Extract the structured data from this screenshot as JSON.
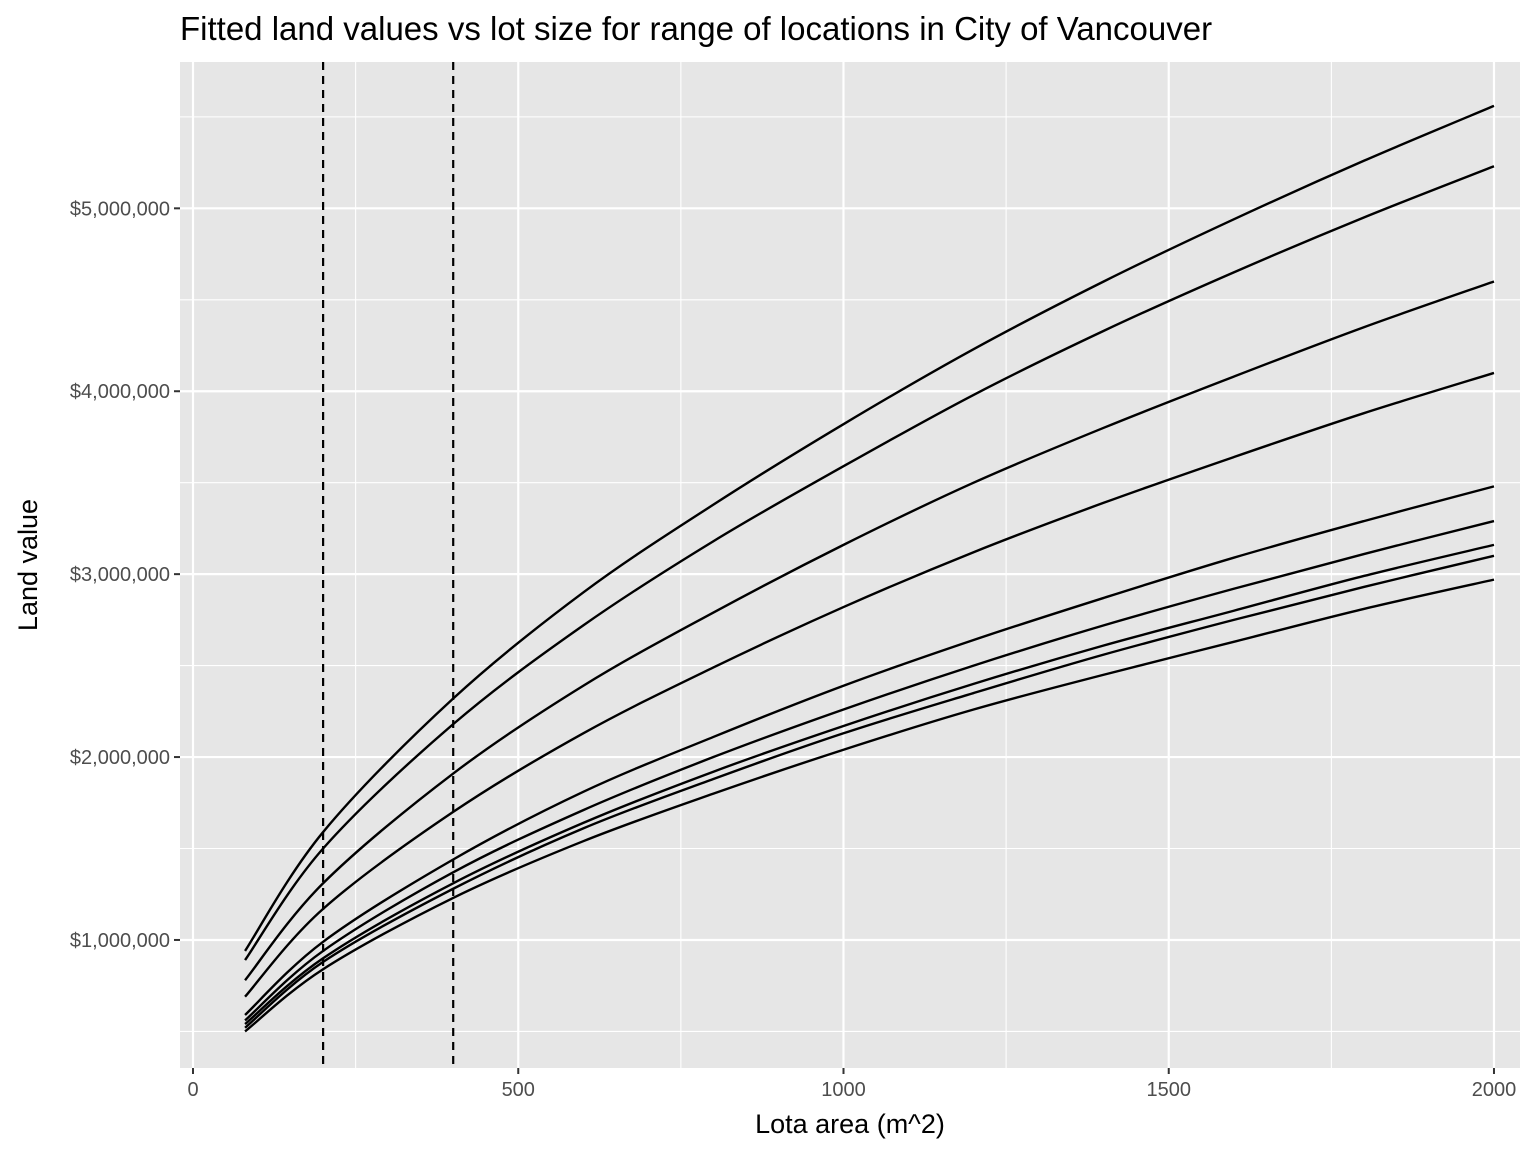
{
  "chart_data": {
    "type": "line",
    "title": "Fitted land values vs lot size for range of locations in City of Vancouver",
    "xlabel": "Lota area (m^2)",
    "ylabel": "Land value",
    "xlim": [
      -20,
      2040
    ],
    "ylim": [
      300000,
      5800000
    ],
    "x_ticks": [
      {
        "value": 0,
        "label": "0"
      },
      {
        "value": 500,
        "label": "500"
      },
      {
        "value": 1000,
        "label": "1000"
      },
      {
        "value": 1500,
        "label": "1500"
      },
      {
        "value": 2000,
        "label": "2000"
      }
    ],
    "y_ticks": [
      {
        "value": 1000000,
        "label": "$1,000,000"
      },
      {
        "value": 2000000,
        "label": "$2,000,000"
      },
      {
        "value": 3000000,
        "label": "$3,000,000"
      },
      {
        "value": 4000000,
        "label": "$4,000,000"
      },
      {
        "value": 5000000,
        "label": "$5,000,000"
      }
    ],
    "grid": true,
    "legend": "none",
    "x": [
      80,
      200,
      400,
      600,
      800,
      1000,
      1200,
      1400,
      1600,
      1800,
      2000
    ],
    "series": [
      {
        "values": [
          940000,
          1590000,
          2320000,
          2900000,
          3380000,
          3820000,
          4230000,
          4600000,
          4940000,
          5260000,
          5560000
        ]
      },
      {
        "values": [
          890000,
          1500000,
          2180000,
          2720000,
          3180000,
          3590000,
          3980000,
          4330000,
          4650000,
          4950000,
          5230000
        ]
      },
      {
        "values": [
          780000,
          1310000,
          1910000,
          2390000,
          2790000,
          3160000,
          3500000,
          3800000,
          4080000,
          4350000,
          4600000
        ]
      },
      {
        "values": [
          690000,
          1170000,
          1700000,
          2130000,
          2490000,
          2820000,
          3120000,
          3390000,
          3640000,
          3880000,
          4100000
        ]
      },
      {
        "values": [
          590000,
          990000,
          1440000,
          1810000,
          2110000,
          2390000,
          2640000,
          2870000,
          3090000,
          3290000,
          3480000
        ]
      },
      {
        "values": [
          560000,
          940000,
          1370000,
          1710000,
          2000000,
          2260000,
          2500000,
          2720000,
          2920000,
          3110000,
          3290000
        ]
      },
      {
        "values": [
          540000,
          900000,
          1310000,
          1640000,
          1920000,
          2170000,
          2400000,
          2610000,
          2800000,
          2990000,
          3160000
        ]
      },
      {
        "values": [
          520000,
          880000,
          1280000,
          1610000,
          1880000,
          2130000,
          2350000,
          2560000,
          2750000,
          2930000,
          3100000
        ]
      },
      {
        "values": [
          500000,
          840000,
          1230000,
          1540000,
          1800000,
          2040000,
          2260000,
          2450000,
          2630000,
          2810000,
          2970000
        ]
      }
    ],
    "vlines": [
      {
        "x": 200,
        "style": "dashed"
      },
      {
        "x": 400,
        "style": "dashed"
      }
    ],
    "colors": {
      "panel": "#e6e6e6",
      "grid": "#ffffff",
      "line": "#000000",
      "tick_text": "#4d4d4d"
    }
  }
}
